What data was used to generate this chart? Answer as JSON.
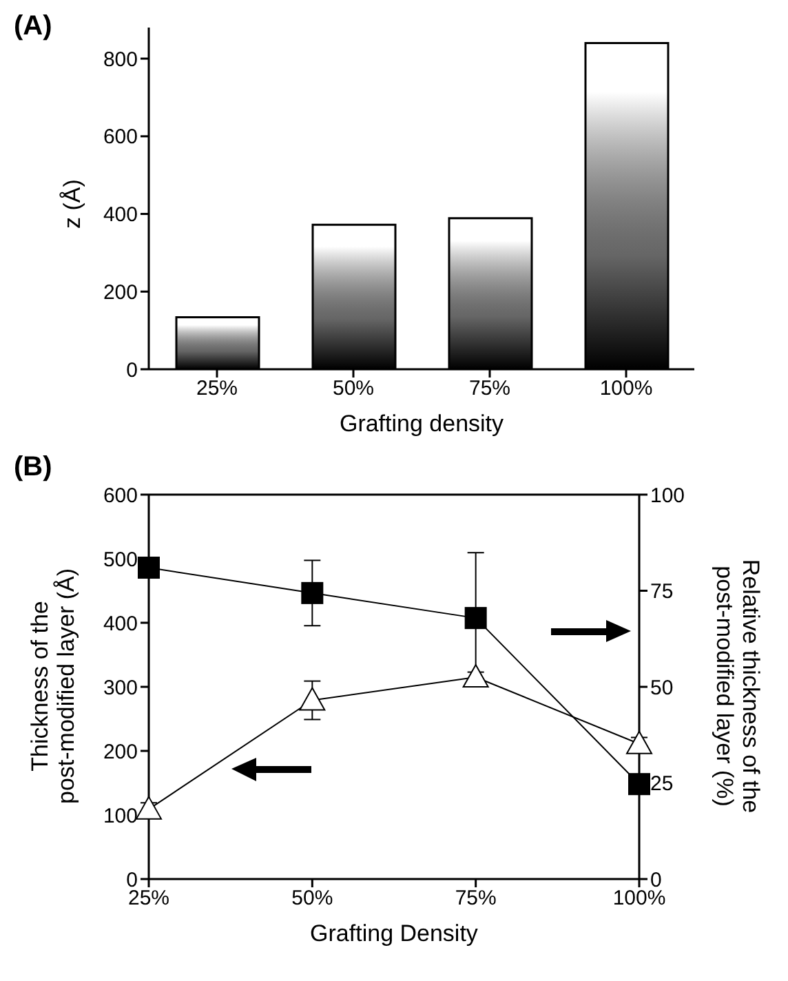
{
  "chart_data": [
    {
      "type": "bar",
      "title": "(A)",
      "xlabel": "Grafting density",
      "ylabel": "z (Å)",
      "categories": [
        "25%",
        "50%",
        "75%",
        "100%"
      ],
      "values": [
        134,
        372,
        389,
        840
      ],
      "color": "#000000",
      "ylim": [
        0,
        880
      ],
      "yticks": [
        0,
        200,
        400,
        600,
        800
      ],
      "grid": false,
      "legend": false
    },
    {
      "type": "line",
      "title": "(B)",
      "xlabel": "Grafting Density",
      "ylabel": "Thickness of the\npost-modified layer (Å)",
      "y2label": "Relative thickness of the\npost-modified layer (%)",
      "categories": [
        "25%",
        "50%",
        "75%",
        "100%"
      ],
      "series": [
        {
          "color": "#000000",
          "marker": "square",
          "axis": "y2",
          "values": [
            81,
            74.4,
            67.9,
            24.7
          ],
          "errors": [
            null,
            8.5,
            17,
            null
          ]
        },
        {
          "color": "#000000",
          "marker": "triangle",
          "values": [
            109,
            279,
            315,
            211
          ],
          "errors": [
            10,
            30,
            8,
            10
          ]
        }
      ],
      "ylim": [
        0,
        600
      ],
      "yticks": [
        0,
        100,
        200,
        300,
        400,
        500,
        600
      ],
      "y2lim": [
        0,
        100
      ],
      "y2ticks": [
        0,
        25,
        50,
        75,
        100
      ],
      "grid": false,
      "legend": false
    }
  ]
}
